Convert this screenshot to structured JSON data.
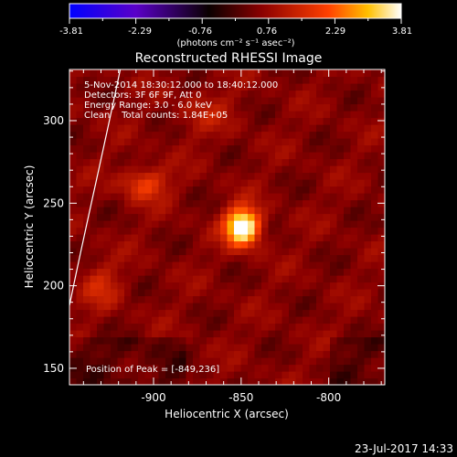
{
  "colorbar": {
    "ticks": [
      "-3.81",
      "-2.29",
      "-0.76",
      "0.76",
      "2.29",
      "3.81"
    ],
    "units": "(photons cm⁻² s⁻¹ asec⁻²)",
    "range": [
      -3.81,
      3.81
    ],
    "colormap": [
      "#0000ff",
      "#5a00c8",
      "#000000",
      "#8b0000",
      "#ff4000",
      "#ffc000",
      "#ffffff"
    ]
  },
  "title": "Reconstructed RHESSI Image",
  "annotations": {
    "time": "5-Nov-2014 18:30:12.000 to 18:40:12.000",
    "detectors": "Detectors: 3F 6F 9F, Att 0",
    "energy": "Energy Range: 3.0 - 6.0 keV",
    "clean": "Clean    Total counts: 1.84E+05",
    "peak": "Position of Peak = [-849,236]"
  },
  "footer": {
    "timestamp": "23-Jul-2017 14:33"
  },
  "chart_data": {
    "type": "heatmap",
    "title": "Reconstructed RHESSI Image",
    "xlabel": "Heliocentric X (arcsec)",
    "ylabel": "Heliocentric Y (arcsec)",
    "xlim": [
      -948,
      -768
    ],
    "ylim": [
      140,
      331
    ],
    "xticks": [
      -900,
      -850,
      -800
    ],
    "yticks": [
      150,
      200,
      250,
      300
    ],
    "peak": {
      "x": -849,
      "y": 236
    },
    "sources": [
      {
        "x": -849,
        "y": 236,
        "sx": 7,
        "sy": 8,
        "amp": 3.81
      },
      {
        "x": -905,
        "y": 262,
        "sx": 9,
        "sy": 7,
        "amp": 1.4
      },
      {
        "x": -930,
        "y": 200,
        "sx": 8,
        "sy": 10,
        "amp": 0.8
      },
      {
        "x": -870,
        "y": 305,
        "sx": 12,
        "sy": 10,
        "amp": 0.5
      }
    ],
    "limb_curve": [
      [
        -948,
        188
      ],
      [
        -940,
        230
      ],
      [
        -930,
        275
      ],
      [
        -919,
        331
      ]
    ]
  }
}
